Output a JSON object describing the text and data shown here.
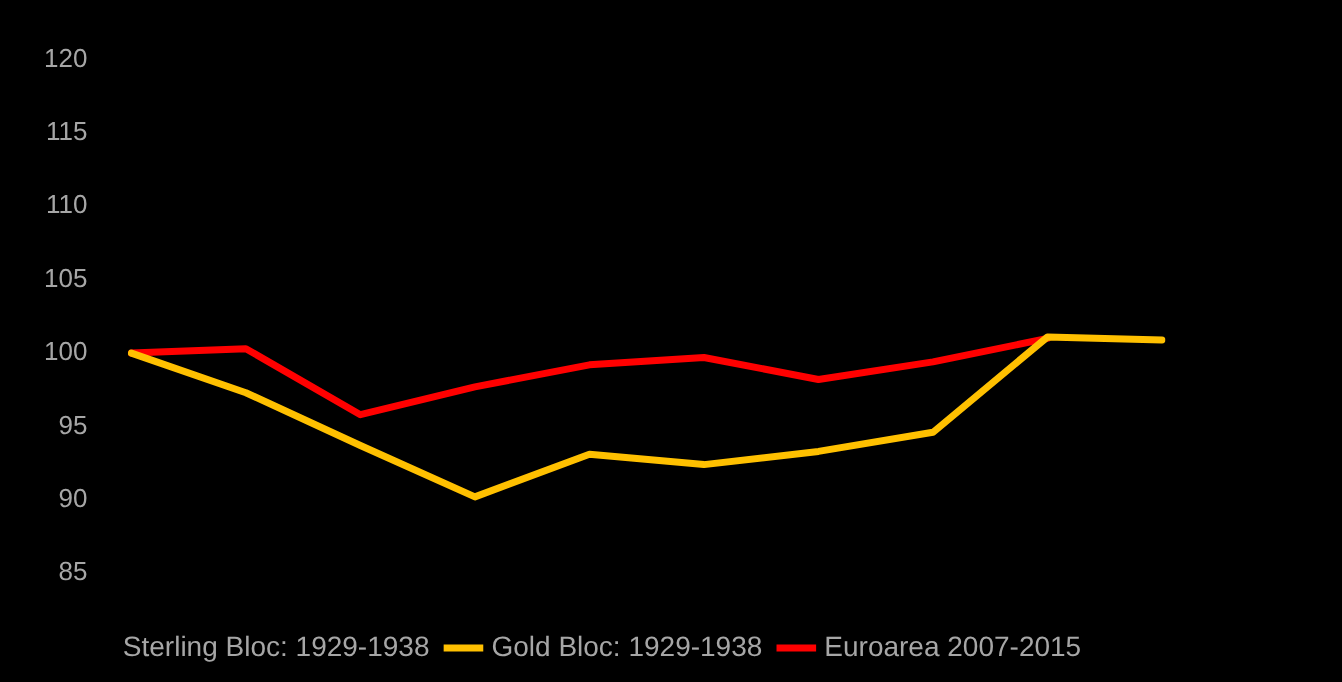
{
  "chart_data": {
    "type": "line",
    "categories": [
      null,
      null,
      null,
      null,
      null,
      null,
      null,
      null,
      null,
      null
    ],
    "series": [
      {
        "name": "Sterling Bloc: 1929-1938",
        "values": [
          null,
          null,
          null,
          null,
          null,
          null,
          null,
          null,
          null,
          null
        ]
      },
      {
        "name": "Gold Bloc: 1929-1938",
        "color": "#ffc000",
        "values": [
          100,
          97.3,
          93.7,
          90.2,
          93.1,
          92.4,
          93.3,
          94.6,
          101.1,
          100.9
        ]
      },
      {
        "name": "Euroarea 2007-2015",
        "color": "#ff0000",
        "values": [
          100,
          100.3,
          95.8,
          97.7,
          99.2,
          99.7,
          98.2,
          99.4,
          101.0,
          null
        ]
      }
    ],
    "ylim": [
      85,
      120
    ],
    "yticks": [
      85,
      90,
      95,
      100,
      105,
      110,
      115,
      120
    ],
    "legend": "bottom",
    "marker": "none",
    "line_style": "solid"
  }
}
